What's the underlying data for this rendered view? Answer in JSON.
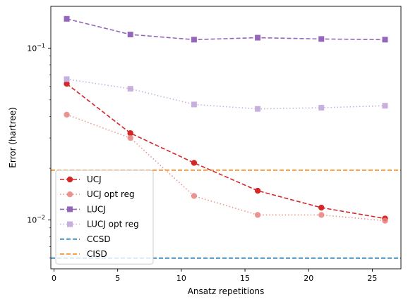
{
  "chart_data": {
    "type": "line",
    "title": "",
    "xlabel": "Ansatz repetitions",
    "ylabel": "Error (hartree)",
    "yscale": "log",
    "xlim": [
      -0.25,
      27.25
    ],
    "ylim": [
      0.0052,
      0.175
    ],
    "x_ticks": [
      0,
      5,
      10,
      15,
      20,
      25
    ],
    "x_tick_labels": [
      "0",
      "5",
      "10",
      "15",
      "20",
      "25"
    ],
    "y_major_ticks": [
      0.01,
      0.1
    ],
    "y_major_tick_labels": [
      "10",
      "10"
    ],
    "y_major_tick_exponents": [
      "−2",
      "−1"
    ],
    "y_minor_ticks": [
      0.006,
      0.007,
      0.008,
      0.009,
      0.02,
      0.03,
      0.04,
      0.05,
      0.06,
      0.07,
      0.08,
      0.09
    ],
    "legend_position": "lower-left",
    "series": [
      {
        "name": "UCJ",
        "color": "#d62728",
        "linestyle": "dashed",
        "marker": "circle",
        "alpha": 1.0,
        "x": [
          1,
          6,
          11,
          16,
          21,
          26
        ],
        "y": [
          0.062,
          0.032,
          0.0215,
          0.0148,
          0.0118,
          0.0102
        ]
      },
      {
        "name": "UCJ opt reg",
        "color": "#e8827d",
        "linestyle": "dotted",
        "marker": "circle",
        "alpha": 0.85,
        "x": [
          1,
          6,
          11,
          16,
          21,
          26
        ],
        "y": [
          0.041,
          0.03,
          0.0138,
          0.0107,
          0.0107,
          0.0099
        ]
      },
      {
        "name": "LUCJ",
        "color": "#9467bd",
        "linestyle": "dashed",
        "marker": "square",
        "alpha": 1.0,
        "x": [
          1,
          6,
          11,
          16,
          21,
          26
        ],
        "y": [
          0.148,
          0.12,
          0.112,
          0.115,
          0.113,
          0.112
        ]
      },
      {
        "name": "LUCJ opt reg",
        "color": "#c8b0de",
        "linestyle": "dotted",
        "marker": "square",
        "alpha": 1.0,
        "x": [
          1,
          6,
          11,
          16,
          21,
          26
        ],
        "y": [
          0.066,
          0.058,
          0.047,
          0.0443,
          0.045,
          0.0462
        ]
      }
    ],
    "reference_lines": [
      {
        "name": "CCSD",
        "color": "#1f77b4",
        "linestyle": "dashed",
        "y": 0.006
      },
      {
        "name": "CISD",
        "color": "#ff7f0e",
        "linestyle": "dashed",
        "y": 0.0195
      }
    ]
  }
}
